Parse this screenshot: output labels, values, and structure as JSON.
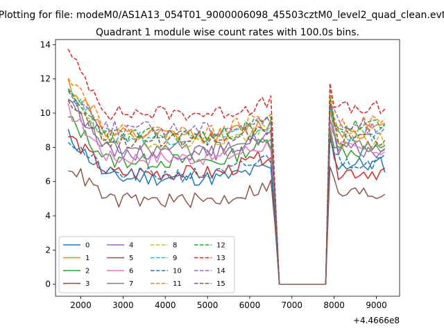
{
  "suptitle": "Plotting for file: modeM0/AS1A13_054T01_9000006098_45503cztM0_level2_quad_clean.evt",
  "chart_data": {
    "type": "line",
    "title": "Quadrant 1 module wise count rates with 100.0s bins.",
    "xlabel": "",
    "ylabel": "",
    "x_offset_label": "+4.4666e8",
    "xlim": [
      1400,
      9550
    ],
    "ylim": [
      -0.7,
      14.3
    ],
    "xticks": [
      2000,
      3000,
      4000,
      5000,
      6000,
      7000,
      8000,
      9000
    ],
    "xtick_labels": [
      "2000",
      "3000",
      "4000",
      "5000",
      "6000",
      "7000",
      "8000",
      "9000"
    ],
    "yticks": [
      0,
      2,
      4,
      6,
      8,
      10,
      12,
      14
    ],
    "ytick_labels": [
      "0",
      "2",
      "4",
      "6",
      "8",
      "10",
      "12",
      "14"
    ],
    "grid": false,
    "legend_position": "lower-left",
    "legend_columns": 4,
    "segments": [
      {
        "x_start": 1700,
        "x_end": 6500,
        "step": 100
      },
      {
        "x_start": 6700,
        "x_end": 7800,
        "step": 100
      },
      {
        "x_start": 7900,
        "x_end": 9200,
        "step": 100
      }
    ],
    "series": [
      {
        "name": "0",
        "color": "#1f77b4",
        "dash": "solid",
        "mean_active": 6.2,
        "start_level": 8.7,
        "end_level": 6.8,
        "second_level": 7.0,
        "dip_level": 4.0,
        "seed": 11
      },
      {
        "name": "1",
        "color": "#ff7f0e",
        "dash": "solid",
        "mean_active": 8.7,
        "start_level": 11.8,
        "end_level": 9.4,
        "second_level": 9.0,
        "dip_level": 5.0,
        "seed": 12
      },
      {
        "name": "2",
        "color": "#2ca02c",
        "dash": "solid",
        "mean_active": 7.2,
        "start_level": 9.7,
        "end_level": 8.4,
        "second_level": 7.8,
        "dip_level": 4.5,
        "seed": 13
      },
      {
        "name": "3",
        "color": "#d62728",
        "dash": "solid",
        "mean_active": 6.5,
        "start_level": 8.7,
        "end_level": 7.6,
        "second_level": 6.6,
        "dip_level": 4.2,
        "seed": 14
      },
      {
        "name": "4",
        "color": "#9467bd",
        "dash": "solid",
        "mean_active": 7.7,
        "start_level": 11.0,
        "end_level": 8.8,
        "second_level": 7.8,
        "dip_level": 4.8,
        "seed": 15
      },
      {
        "name": "5",
        "color": "#8c564b",
        "dash": "solid",
        "mean_active": 4.9,
        "start_level": 7.0,
        "end_level": 5.8,
        "second_level": 5.3,
        "dip_level": 3.4,
        "seed": 16
      },
      {
        "name": "6",
        "color": "#e377c2",
        "dash": "solid",
        "mean_active": 7.4,
        "start_level": 10.2,
        "end_level": 8.2,
        "second_level": 7.9,
        "dip_level": 4.6,
        "seed": 17
      },
      {
        "name": "7",
        "color": "#7f7f7f",
        "dash": "solid",
        "mean_active": 7.9,
        "start_level": 10.6,
        "end_level": 8.6,
        "second_level": 8.2,
        "dip_level": 4.8,
        "seed": 18
      },
      {
        "name": "8",
        "color": "#bcbd22",
        "dash": "dashed",
        "mean_active": 8.4,
        "start_level": 11.2,
        "end_level": 9.0,
        "second_level": 8.4,
        "dip_level": 5.0,
        "seed": 19
      },
      {
        "name": "9",
        "color": "#17becf",
        "dash": "dashed",
        "mean_active": 8.6,
        "start_level": 11.5,
        "end_level": 9.2,
        "second_level": 8.8,
        "dip_level": 5.1,
        "seed": 20
      },
      {
        "name": "10",
        "color": "#1f77b4",
        "dash": "dashed",
        "mean_active": 6.4,
        "start_level": 8.5,
        "end_level": 7.4,
        "second_level": 7.2,
        "dip_level": 4.1,
        "seed": 21
      },
      {
        "name": "11",
        "color": "#ff7f0e",
        "dash": "dashed",
        "mean_active": 8.9,
        "start_level": 12.4,
        "end_level": 10.0,
        "second_level": 9.4,
        "dip_level": 5.2,
        "seed": 22
      },
      {
        "name": "12",
        "color": "#2ca02c",
        "dash": "dashed",
        "mean_active": 8.7,
        "start_level": 11.0,
        "end_level": 9.6,
        "second_level": 9.2,
        "dip_level": 5.2,
        "seed": 23
      },
      {
        "name": "13",
        "color": "#d62728",
        "dash": "dashed",
        "mean_active": 10.0,
        "start_level": 13.5,
        "end_level": 10.6,
        "second_level": 10.2,
        "dip_level": 5.6,
        "seed": 24
      },
      {
        "name": "14",
        "color": "#9467bd",
        "dash": "dashed",
        "mean_active": 9.1,
        "start_level": 11.2,
        "end_level": 9.6,
        "second_level": 9.2,
        "dip_level": 5.4,
        "seed": 25
      },
      {
        "name": "15",
        "color": "#8c564b",
        "dash": "dashed",
        "mean_active": 8.4,
        "start_level": 10.8,
        "end_level": 9.0,
        "second_level": 8.6,
        "dip_level": 5.0,
        "seed": 26
      }
    ]
  }
}
